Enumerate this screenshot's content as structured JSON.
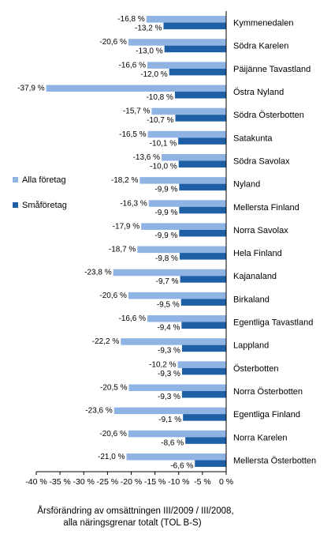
{
  "chart_data": {
    "type": "bar",
    "orientation": "horizontal",
    "categories": [
      "Kymmenedalen",
      "Södra Karelen",
      "Päijänne Tavastland",
      "Östra Nyland",
      "Södra Österbotten",
      "Satakunta",
      "Södra Savolax",
      "Nyland",
      "Mellersta Finland",
      "Norra Savolax",
      "Hela Finland",
      "Kajanaland",
      "Birkaland",
      "Egentliga Tavastland",
      "Lappland",
      "Österbotten",
      "Norra Österbotten",
      "Egentliga Finland",
      "Norra Karelen",
      "Mellersta Österbotten"
    ],
    "series": [
      {
        "name": "Alla företag",
        "color": "#8fb4e3",
        "values": [
          -16.8,
          -20.6,
          -16.6,
          -37.9,
          -15.7,
          -16.5,
          -13.6,
          -18.2,
          -16.3,
          -17.9,
          -18.7,
          -23.8,
          -20.6,
          -16.6,
          -22.2,
          -10.2,
          -20.5,
          -23.6,
          -20.6,
          -21.0
        ],
        "labels": [
          "-16,8 %",
          "-20,6 %",
          "-16,6 %",
          "-37,9 %",
          "-15,7 %",
          "-16,5 %",
          "-13,6 %",
          "-18,2 %",
          "-16,3 %",
          "-17,9 %",
          "-18,7 %",
          "-23,8 %",
          "-20,6 %",
          "-16,6 %",
          "-22,2 %",
          "-10,2 %",
          "-20,5 %",
          "-23,6 %",
          "-20,6 %",
          "-21,0 %"
        ]
      },
      {
        "name": "Småföretag",
        "color": "#1f5fa6",
        "values": [
          -13.2,
          -13.0,
          -12.0,
          -10.8,
          -10.7,
          -10.1,
          -10.0,
          -9.9,
          -9.9,
          -9.9,
          -9.8,
          -9.7,
          -9.5,
          -9.4,
          -9.3,
          -9.3,
          -9.3,
          -9.1,
          -8.6,
          -6.6
        ],
        "labels": [
          "-13,2 %",
          "-13,0 %",
          "-12,0 %",
          "-10,8 %",
          "-10,7 %",
          "-10,1 %",
          "-10,0 %",
          "-9,9 %",
          "-9,9 %",
          "-9,9 %",
          "-9,8 %",
          "-9,7 %",
          "-9,5 %",
          "-9,4 %",
          "-9,3 %",
          "-9,3 %",
          "-9,3 %",
          "-9,1 %",
          "-8,6 %",
          "-6,6 %"
        ]
      }
    ],
    "xlim": [
      -40,
      0
    ],
    "xticks": [
      -40,
      -35,
      -30,
      -25,
      -20,
      -15,
      -10,
      -5,
      0
    ],
    "xtick_labels": [
      "-40 %",
      "-35 %",
      "-30 %",
      "-25 %",
      "-20 %",
      "-15 %",
      "-10 %",
      "-5 %",
      "0 %"
    ],
    "xlabel_lines": [
      "Årsförändring av omsättningen III/2009 / III/2008,",
      "alla näringsgrenar totalt  (TOL B-S)"
    ],
    "legend_position": "left",
    "grid": false
  }
}
